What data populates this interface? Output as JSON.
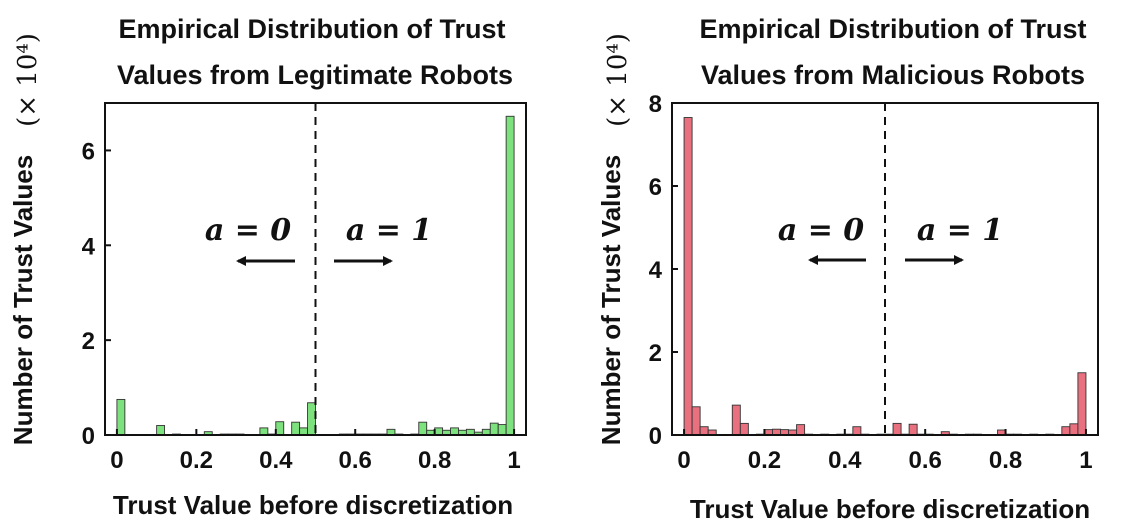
{
  "chart_data": [
    {
      "type": "bar",
      "title_lines": [
        "Empirical Distribution of Trust",
        "Values from Legitimate Robots"
      ],
      "xlabel": "Trust Value before discretization",
      "ylabel": "Number of Trust Values",
      "y_multiplier": "(× 10⁴)",
      "xlim": [
        -0.03,
        1.03
      ],
      "ylim": [
        0,
        7
      ],
      "xticks": [
        "0",
        "0.2",
        "0.4",
        "0.6",
        "0.8",
        "1"
      ],
      "yticks": [
        "0",
        "2",
        "4",
        "6"
      ],
      "bar_color": "#7de27d",
      "threshold": 0.5,
      "annotations": [
        {
          "text": "a = 0",
          "side": "left"
        },
        {
          "text": "a = 1",
          "side": "right"
        }
      ],
      "bin_width": 0.02,
      "x": [
        0.01,
        0.09,
        0.11,
        0.15,
        0.19,
        0.21,
        0.23,
        0.25,
        0.27,
        0.29,
        0.31,
        0.33,
        0.35,
        0.37,
        0.39,
        0.41,
        0.43,
        0.45,
        0.47,
        0.49,
        0.51,
        0.57,
        0.59,
        0.61,
        0.63,
        0.65,
        0.67,
        0.69,
        0.71,
        0.75,
        0.77,
        0.79,
        0.81,
        0.83,
        0.85,
        0.87,
        0.89,
        0.91,
        0.93,
        0.95,
        0.97,
        0.99
      ],
      "values": [
        0.75,
        0.01,
        0.2,
        0.02,
        0.01,
        0.01,
        0.07,
        0.01,
        0.02,
        0.02,
        0.02,
        0.01,
        0.01,
        0.15,
        0.02,
        0.28,
        0.01,
        0.27,
        0.15,
        0.68,
        0.01,
        0.02,
        0.02,
        0.02,
        0.02,
        0.02,
        0.02,
        0.12,
        0.02,
        0.02,
        0.27,
        0.1,
        0.15,
        0.1,
        0.15,
        0.1,
        0.12,
        0.06,
        0.12,
        0.25,
        0.22,
        6.72
      ]
    },
    {
      "type": "bar",
      "title_lines": [
        "Empirical Distribution of Trust",
        "Values from Malicious Robots"
      ],
      "xlabel": "Trust Value before discretization",
      "ylabel": "Number of Trust Values",
      "y_multiplier": "(× 10⁴)",
      "xlim": [
        -0.03,
        1.03
      ],
      "ylim": [
        0,
        8
      ],
      "xticks": [
        "0",
        "0.2",
        "0.4",
        "0.6",
        "0.8",
        "1"
      ],
      "yticks": [
        "0",
        "2",
        "4",
        "6",
        "8"
      ],
      "bar_color": "#e8707f",
      "threshold": 0.5,
      "annotations": [
        {
          "text": "a = 0",
          "side": "left"
        },
        {
          "text": "a = 1",
          "side": "right"
        }
      ],
      "bin_width": 0.02,
      "x": [
        0.01,
        0.03,
        0.05,
        0.07,
        0.13,
        0.15,
        0.19,
        0.21,
        0.23,
        0.25,
        0.27,
        0.29,
        0.31,
        0.35,
        0.39,
        0.41,
        0.43,
        0.45,
        0.49,
        0.51,
        0.53,
        0.55,
        0.57,
        0.59,
        0.61,
        0.65,
        0.67,
        0.71,
        0.73,
        0.79,
        0.81,
        0.83,
        0.87,
        0.91,
        0.95,
        0.97,
        0.99
      ],
      "values": [
        7.65,
        0.68,
        0.2,
        0.12,
        0.72,
        0.28,
        0.02,
        0.13,
        0.14,
        0.13,
        0.12,
        0.25,
        0.02,
        0.02,
        0.02,
        0.02,
        0.2,
        0.02,
        0.02,
        0.02,
        0.28,
        0.02,
        0.26,
        0.02,
        0.02,
        0.08,
        0.02,
        0.02,
        0.02,
        0.12,
        0.02,
        0.02,
        0.02,
        0.02,
        0.2,
        0.27,
        1.5
      ]
    }
  ]
}
